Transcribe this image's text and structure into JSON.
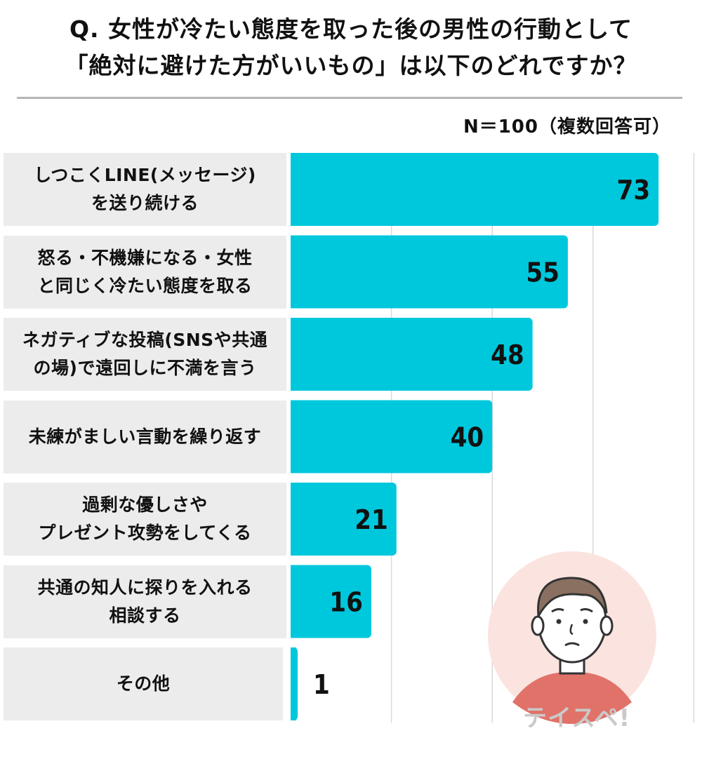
{
  "title_line1": "Q. 女性が冷たい態度を取った後の男性の行動として",
  "title_line2": "「絶対に避けた方がいいもの」は以下のどれですか？",
  "sample_note": "N＝100（複数回答可）",
  "logo_text": "テイスペ!",
  "colors": {
    "bar": "#00c8dc",
    "label_bg": "#ececec",
    "grid": "#d9d9d9",
    "face_bg": "#fbe3df"
  },
  "chart_data": {
    "type": "bar",
    "orientation": "horizontal",
    "categories": [
      "しつこくLINE(メッセージ)\nを送り続ける",
      "怒る・不機嫌になる・女性\nと同じく冷たい態度を取る",
      "ネガティブな投稿(SNSや共通\nの場)で遠回しに不満を言う",
      "未練がましい言動を繰り返す",
      "過剰な優しさや\nプレゼント攻勢をしてくる",
      "共通の知人に探りを入れる\n相談する",
      "その他"
    ],
    "values": [
      73,
      55,
      48,
      40,
      21,
      16,
      1
    ],
    "xlim": [
      0,
      80
    ],
    "grid": true
  }
}
